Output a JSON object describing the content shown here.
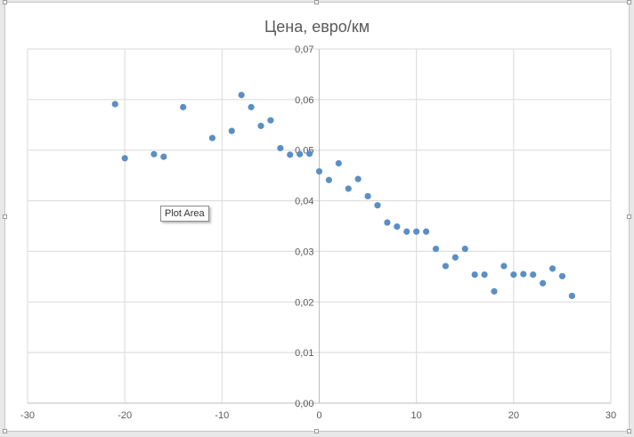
{
  "tooltip": "Plot Area",
  "chart_data": {
    "type": "scatter",
    "title": "Цена, евро/км",
    "xlabel": "",
    "ylabel": "",
    "xlim": [
      -30,
      30
    ],
    "ylim": [
      0,
      0.07
    ],
    "x_ticks": [
      -30,
      -20,
      -10,
      0,
      10,
      20,
      30
    ],
    "y_ticks": [
      0,
      0.01,
      0.02,
      0.03,
      0.04,
      0.05,
      0.06,
      0.07
    ],
    "x_tick_labels": [
      "-30",
      "-20",
      "-10",
      "0",
      "10",
      "20",
      "30"
    ],
    "y_tick_labels": [
      "0,00",
      "0,01",
      "0,02",
      "0,03",
      "0,04",
      "0,05",
      "0,06",
      "0,07"
    ],
    "grid": true,
    "legend": "none",
    "marker_color": "#5b8fc3",
    "points": [
      [
        -21,
        0.0591
      ],
      [
        -20,
        0.0484
      ],
      [
        -17,
        0.0492
      ],
      [
        -16,
        0.0487
      ],
      [
        -14,
        0.0585
      ],
      [
        -11,
        0.0524
      ],
      [
        -9,
        0.0538
      ],
      [
        -8,
        0.0609
      ],
      [
        -7,
        0.0585
      ],
      [
        -6,
        0.0548
      ],
      [
        -5,
        0.0559
      ],
      [
        -4,
        0.0504
      ],
      [
        -3,
        0.0491
      ],
      [
        -2,
        0.0492
      ],
      [
        -1,
        0.0493
      ],
      [
        0,
        0.0458
      ],
      [
        1,
        0.0441
      ],
      [
        2,
        0.0474
      ],
      [
        3,
        0.0424
      ],
      [
        4,
        0.0443
      ],
      [
        5,
        0.0409
      ],
      [
        6,
        0.0391
      ],
      [
        7,
        0.0357
      ],
      [
        8,
        0.0349
      ],
      [
        9,
        0.0339
      ],
      [
        10,
        0.0339
      ],
      [
        11,
        0.0339
      ],
      [
        12,
        0.0305
      ],
      [
        13,
        0.0271
      ],
      [
        14,
        0.0288
      ],
      [
        15,
        0.0305
      ],
      [
        16,
        0.0254
      ],
      [
        17,
        0.0254
      ],
      [
        18,
        0.0221
      ],
      [
        19,
        0.0271
      ],
      [
        20,
        0.0254
      ],
      [
        21,
        0.0255
      ],
      [
        22,
        0.0254
      ],
      [
        23,
        0.0237
      ],
      [
        24,
        0.0266
      ],
      [
        25,
        0.0251
      ],
      [
        26,
        0.0212
      ]
    ]
  }
}
